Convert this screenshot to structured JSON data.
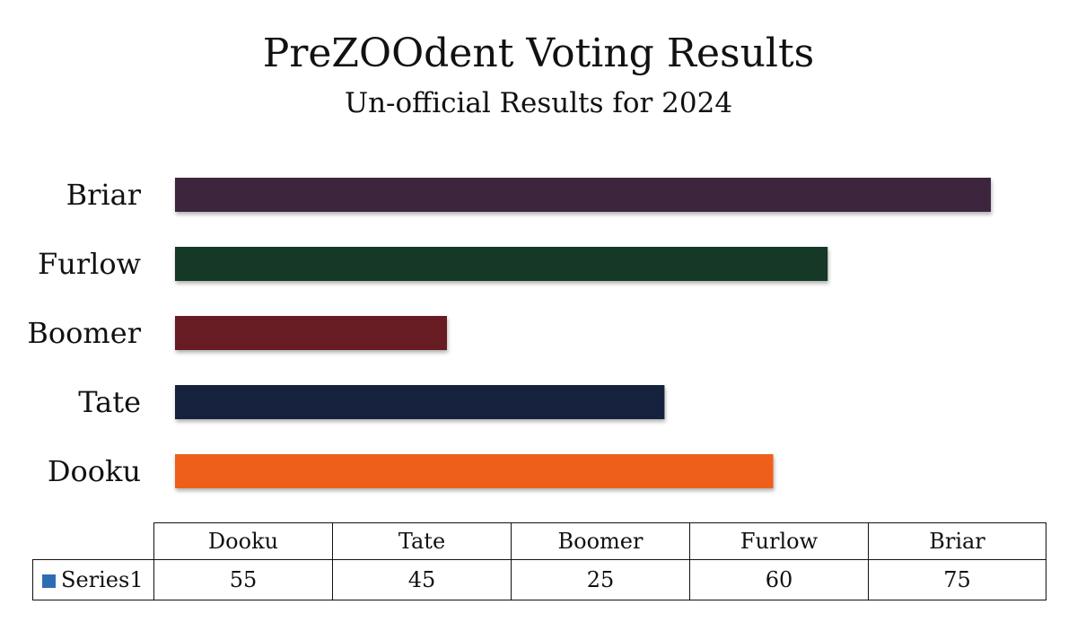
{
  "chart_data": {
    "type": "bar",
    "orientation": "horizontal",
    "title": "PreZOOdent Voting Results",
    "subtitle": "Un-official Results for 2024",
    "categories": [
      "Dooku",
      "Tate",
      "Boomer",
      "Furlow",
      "Briar"
    ],
    "series": [
      {
        "name": "Series1",
        "values": [
          55,
          45,
          25,
          60,
          75
        ],
        "legend_color": "#2e6db4"
      }
    ],
    "bar_colors": [
      "#ef5f1e",
      "#19203c",
      "#661e23",
      "#163828",
      "#3e283c"
    ],
    "xlim": [
      0,
      75
    ],
    "grid": false,
    "data_table": true
  }
}
